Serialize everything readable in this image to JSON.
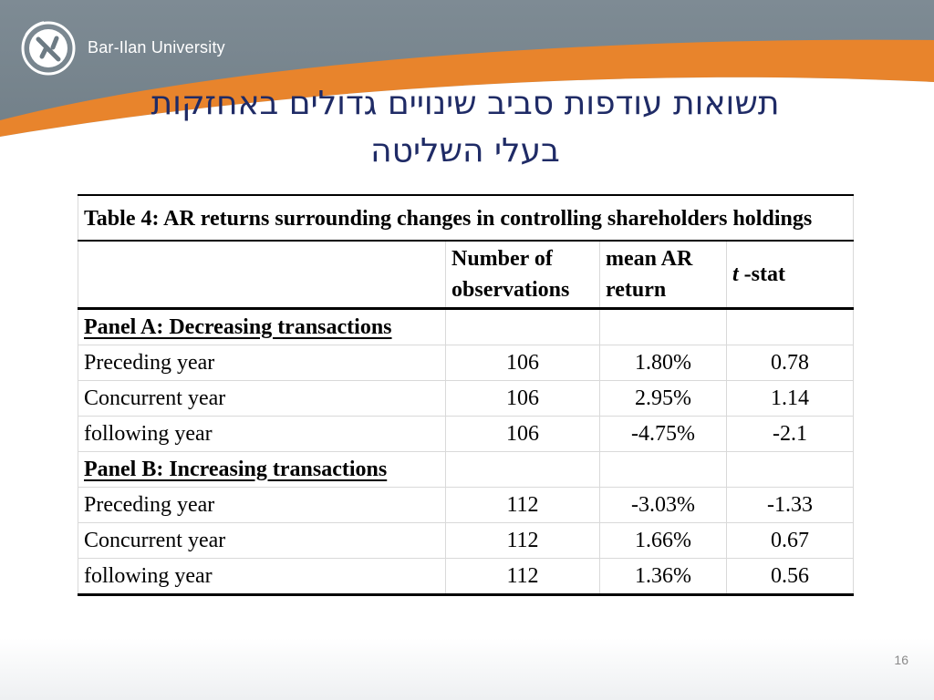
{
  "header": {
    "brand": "Bar-Ilan University",
    "title_line1": "תשואות עודפות סביב שינויים גדולים באחזקות",
    "title_line2": "בעלי השליטה"
  },
  "table": {
    "caption": "Table 4: AR returns surrounding changes in controlling shareholders holdings",
    "columns": [
      "",
      "Number of observations",
      "mean AR return",
      "t -stat"
    ],
    "col_stat_prefix": "t",
    "col_stat_suffix": " -stat",
    "panels": [
      {
        "title": "Panel A: Decreasing transactions",
        "rows": [
          {
            "label": "Preceding year",
            "n": "106",
            "mean": "1.80%",
            "t": "0.78"
          },
          {
            "label": "Concurrent year",
            "n": "106",
            "mean": "2.95%",
            "t": "1.14"
          },
          {
            "label": "following year",
            "n": "106",
            "mean": "-4.75%",
            "t": "-2.1"
          }
        ]
      },
      {
        "title": "Panel B: Increasing transactions",
        "rows": [
          {
            "label": "Preceding year",
            "n": "112",
            "mean": "-3.03%",
            "t": "-1.33"
          },
          {
            "label": "Concurrent year",
            "n": "112",
            "mean": "1.66%",
            "t": "0.67"
          },
          {
            "label": "following year",
            "n": "112",
            "mean": "1.36%",
            "t": "0.56"
          }
        ]
      }
    ]
  },
  "page_number": "16",
  "colors": {
    "header_gray": "#7e8b94",
    "accent_orange": "#e8842c",
    "title_blue": "#1f2b66"
  }
}
